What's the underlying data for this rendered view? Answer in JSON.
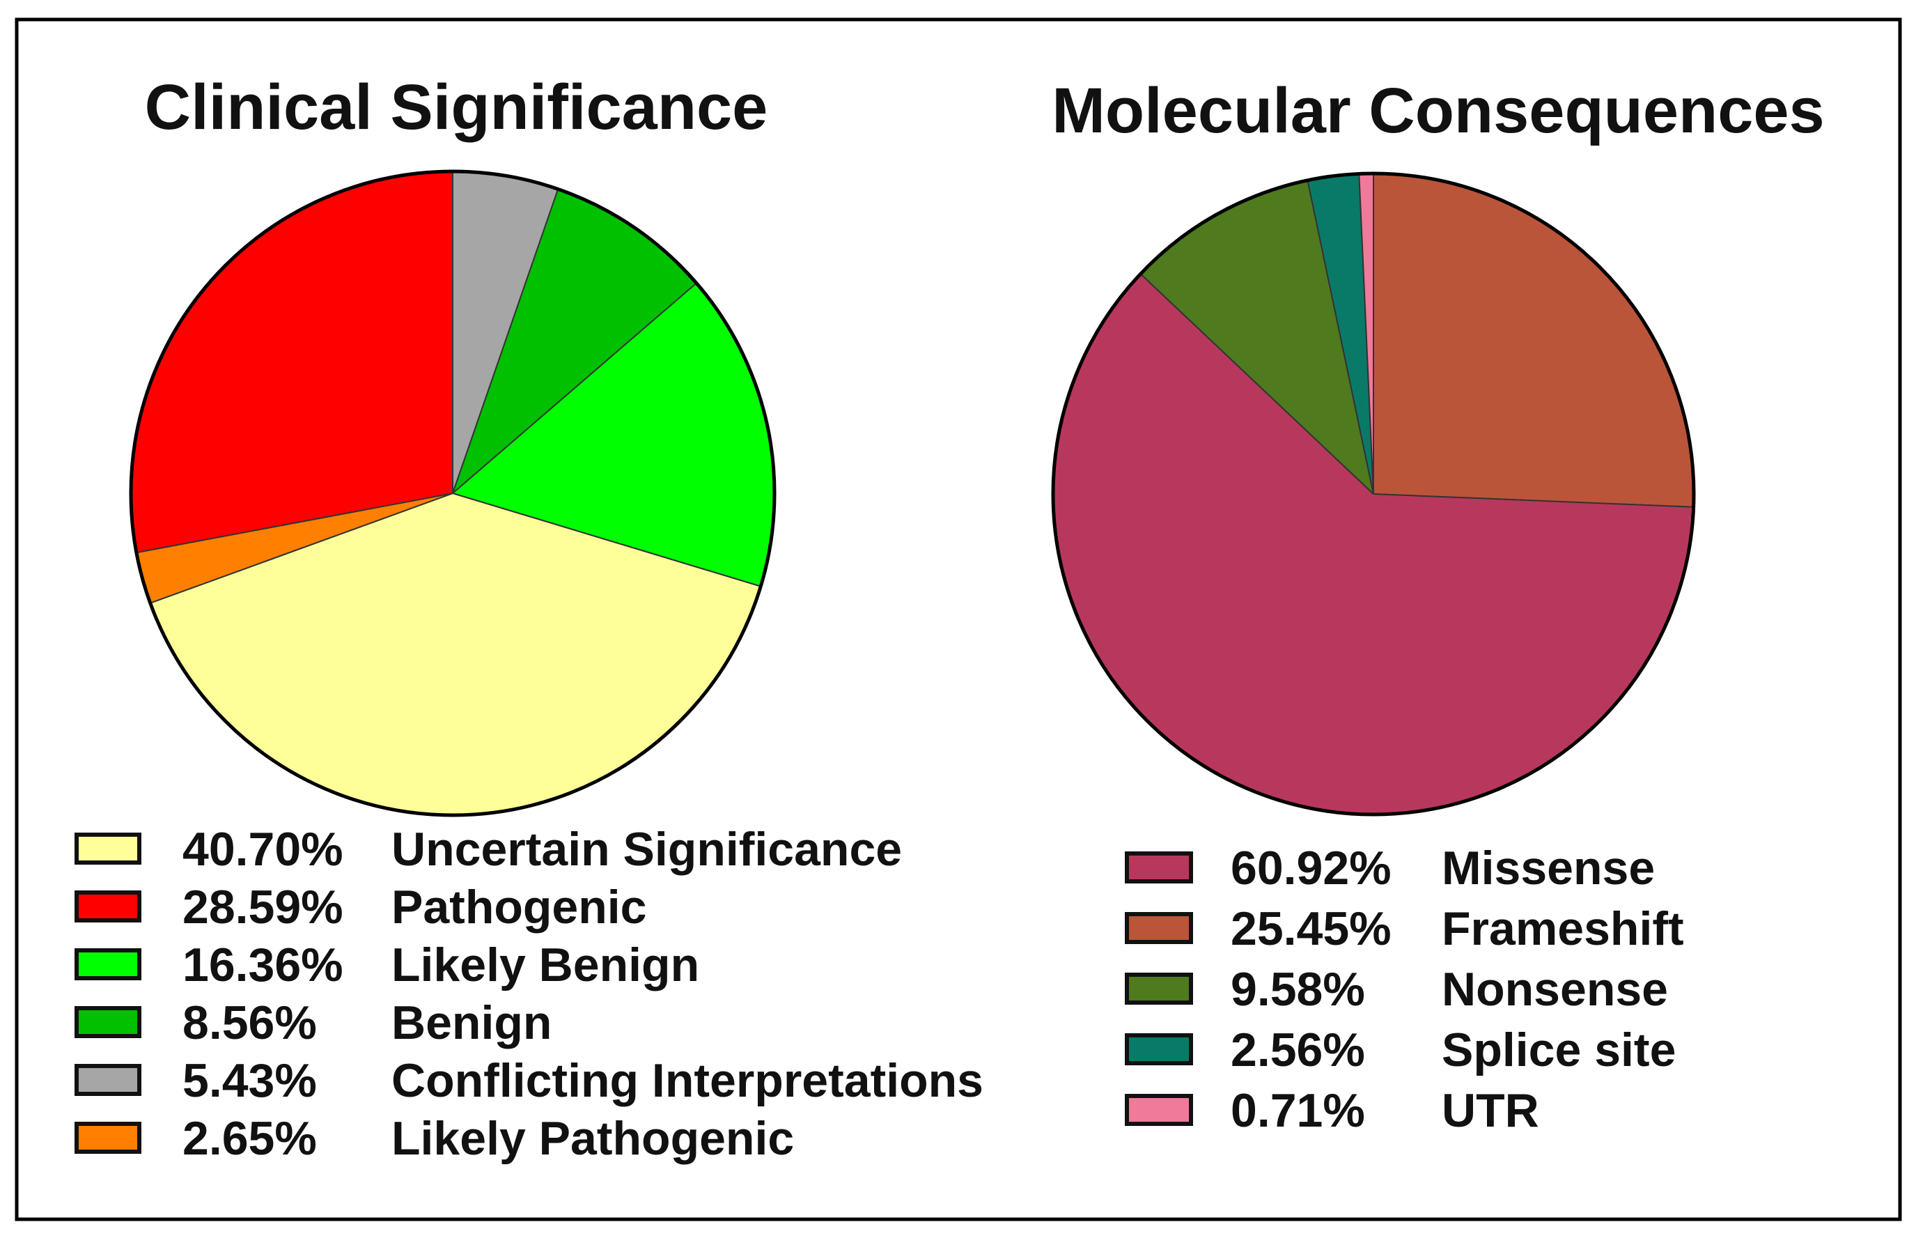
{
  "chart_data": [
    {
      "type": "pie",
      "title": "Clinical Significance",
      "slices": [
        {
          "label": "Uncertain Significance",
          "value": 40.7,
          "value_text": "40.70%",
          "color": "#ffff99"
        },
        {
          "label": "Pathogenic",
          "value": 28.59,
          "value_text": "28.59%",
          "color": "#ff0000"
        },
        {
          "label": "Likely Benign",
          "value": 16.36,
          "value_text": "16.36%",
          "color": "#00ff00"
        },
        {
          "label": "Benign",
          "value": 8.56,
          "value_text": "8.56%",
          "color": "#00c000"
        },
        {
          "label": "Conflicting Interpretations",
          "value": 5.43,
          "value_text": "5.43%",
          "color": "#a6a6a6"
        },
        {
          "label": "Likely Pathogenic",
          "value": 2.65,
          "value_text": "2.65%",
          "color": "#ff8000"
        }
      ],
      "legend_position": "bottom"
    },
    {
      "type": "pie",
      "title": "Molecular Consequences",
      "slices": [
        {
          "label": "Missense",
          "value": 60.92,
          "value_text": "60.92%",
          "color": "#b8385d"
        },
        {
          "label": "Frameshift",
          "value": 25.45,
          "value_text": "25.45%",
          "color": "#bb5539"
        },
        {
          "label": "Nonsense",
          "value": 9.58,
          "value_text": "9.58%",
          "color": "#4f7a1e"
        },
        {
          "label": "Splice site",
          "value": 2.56,
          "value_text": "2.56%",
          "color": "#0a7a68"
        },
        {
          "label": "UTR",
          "value": 0.71,
          "value_text": "0.71%",
          "color": "#f07a9a"
        }
      ],
      "legend_position": "bottom"
    }
  ]
}
